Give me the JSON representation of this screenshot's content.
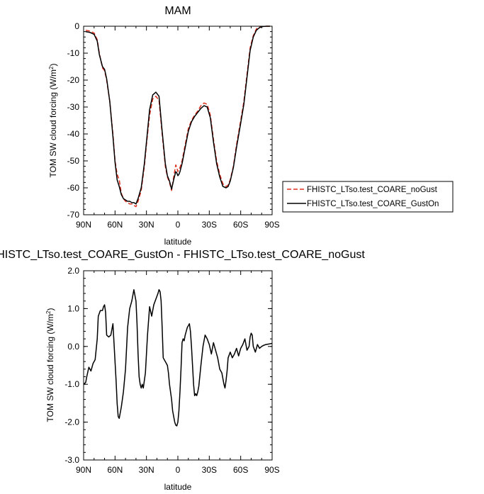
{
  "chart_data": [
    {
      "type": "line",
      "title": "MAM",
      "xlabel": "latitude",
      "ylabel_main": "TOM SW cloud forcing (W/m",
      "ylabel_sup": "2",
      "ylabel_end": ")",
      "xlim": [
        90,
        -90
      ],
      "ylim": [
        -70,
        0
      ],
      "x_ticks": [
        90,
        60,
        30,
        0,
        -30,
        -60,
        -90
      ],
      "x_tick_labels": [
        "90N",
        "60N",
        "30N",
        "0",
        "30S",
        "60S",
        "90S"
      ],
      "y_ticks": [
        0,
        -10,
        -20,
        -30,
        -40,
        -50,
        -60,
        -70
      ],
      "y_tick_labels": [
        "0",
        "-10",
        "-20",
        "-30",
        "-40",
        "-50",
        "-60",
        "-70"
      ],
      "legend_position": "right",
      "series": [
        {
          "name": "FHISTC_LTso.test_COARE_noGust",
          "color": "#e03020",
          "dash": true,
          "x": [
            88,
            84,
            80,
            77,
            75,
            72,
            70,
            68,
            65,
            62,
            60,
            58,
            56,
            54,
            52,
            50,
            48,
            46,
            44,
            42,
            40,
            38,
            35,
            32,
            30,
            27,
            24,
            21,
            18,
            15,
            12,
            10,
            8,
            6,
            4,
            2,
            1,
            0,
            -1,
            -2,
            -4,
            -6,
            -8,
            -10,
            -13,
            -16,
            -19,
            -22,
            -25,
            -28,
            -31,
            -34,
            -37,
            -40,
            -43,
            -46,
            -48,
            -50,
            -53,
            -56,
            -60,
            -63,
            -66,
            -69,
            -72,
            -75,
            -78,
            -81,
            -85,
            -88
          ],
          "y": [
            -1.5,
            -1.8,
            -2.5,
            -5,
            -10,
            -15.5,
            -16.5,
            -20,
            -28,
            -40,
            -50,
            -55,
            -57,
            -62,
            -64,
            -65,
            -65.5,
            -66,
            -66,
            -66.5,
            -67,
            -65,
            -61,
            -52,
            -44,
            -33,
            -27,
            -26,
            -27.5,
            -40,
            -52,
            -56,
            -58,
            -61,
            -56,
            -51.5,
            -52.5,
            -54,
            -53,
            -52.5,
            -50,
            -46,
            -42,
            -38,
            -35,
            -33,
            -31.5,
            -29.5,
            -28.5,
            -29,
            -33,
            -42,
            -50,
            -55,
            -58.5,
            -59.5,
            -59,
            -57,
            -52,
            -44,
            -35,
            -28,
            -18,
            -8,
            -3.5,
            -1,
            -0.3,
            -0.1,
            0,
            0
          ]
        },
        {
          "name": "FHISTC_LTso.test_COARE_GustOn",
          "color": "#000000",
          "dash": false,
          "x": [
            88,
            84,
            80,
            77,
            75,
            72,
            70,
            68,
            65,
            62,
            60,
            58,
            56,
            54,
            52,
            50,
            48,
            46,
            44,
            42,
            40,
            38,
            35,
            32,
            30,
            27,
            24,
            21,
            18,
            15,
            12,
            10,
            8,
            6,
            4,
            2,
            1,
            0,
            -1,
            -2,
            -4,
            -6,
            -8,
            -10,
            -13,
            -16,
            -19,
            -22,
            -25,
            -28,
            -31,
            -34,
            -37,
            -40,
            -43,
            -46,
            -48,
            -50,
            -53,
            -56,
            -60,
            -63,
            -66,
            -69,
            -72,
            -75,
            -78,
            -81,
            -85,
            -88
          ],
          "y": [
            -2,
            -2.3,
            -3,
            -5.5,
            -10.5,
            -15,
            -16,
            -19.5,
            -28,
            -41,
            -50.5,
            -57,
            -59.5,
            -62.5,
            -64,
            -64.5,
            -65,
            -65,
            -65.5,
            -65.5,
            -66,
            -64,
            -60,
            -51,
            -43,
            -31,
            -25.5,
            -24.5,
            -26,
            -39,
            -51,
            -55.5,
            -57.5,
            -60.5,
            -57,
            -54,
            -54.5,
            -55.5,
            -55,
            -54,
            -51,
            -47,
            -43,
            -39,
            -35.5,
            -33.5,
            -32,
            -30.5,
            -29.5,
            -30,
            -34,
            -43,
            -51,
            -56,
            -59.5,
            -60,
            -59.5,
            -57.5,
            -52.5,
            -45,
            -36,
            -29,
            -19,
            -9,
            -4,
            -1.5,
            -0.5,
            -0.1,
            0,
            0
          ]
        }
      ]
    },
    {
      "type": "line",
      "title": "HISTC_LTso.test_COARE_GustOn - FHISTC_LTso.test_COARE_noGust",
      "xlabel": "latitude",
      "ylabel_main": "TOM SW cloud forcing (W/m",
      "ylabel_sup": "2",
      "ylabel_end": ")",
      "xlim": [
        90,
        -90
      ],
      "ylim": [
        -3.0,
        2.0
      ],
      "x_ticks": [
        90,
        60,
        30,
        0,
        -30,
        -60,
        -90
      ],
      "x_tick_labels": [
        "90N",
        "60N",
        "30N",
        "0",
        "30S",
        "60S",
        "90S"
      ],
      "y_ticks": [
        2.0,
        1.0,
        0.0,
        -1.0,
        -2.0,
        -3.0
      ],
      "y_tick_labels": [
        "2.0",
        "1.0",
        "0.0",
        "-1.0",
        "-2.0",
        "-3.0"
      ],
      "series": [
        {
          "name": "",
          "color": "#000000",
          "dash": false,
          "x": [
            90,
            88,
            87,
            85,
            83,
            81,
            79,
            77,
            76,
            74,
            72,
            71,
            70,
            69,
            68,
            66,
            64,
            63,
            62,
            61,
            60,
            59,
            58,
            57,
            56,
            54,
            52,
            50,
            48,
            46,
            44,
            42,
            40,
            39,
            38,
            37,
            36,
            35,
            34,
            33,
            31,
            29,
            27,
            25,
            23,
            21,
            19,
            18,
            17,
            16,
            15,
            14,
            12,
            10,
            9,
            8,
            7,
            6,
            5,
            4,
            3,
            2,
            1,
            0,
            -1,
            -2,
            -3,
            -4,
            -5,
            -6,
            -7,
            -8,
            -9,
            -10,
            -11,
            -12,
            -13,
            -14,
            -15,
            -16,
            -17,
            -18,
            -19,
            -20,
            -22,
            -24,
            -26,
            -28,
            -30,
            -32,
            -34,
            -36,
            -38,
            -40,
            -42,
            -44,
            -45,
            -46,
            -47,
            -48,
            -50,
            -52,
            -54,
            -56,
            -58,
            -60,
            -62,
            -64,
            -66,
            -68,
            -69,
            -70,
            -71,
            -72,
            -74,
            -76,
            -78,
            -80,
            -82,
            -84,
            -86,
            -88,
            -90
          ],
          "y": [
            -1.0,
            -0.95,
            -0.8,
            -0.55,
            -0.65,
            -0.45,
            -0.35,
            0.2,
            0.8,
            0.95,
            0.95,
            1.05,
            1.1,
            0.9,
            0.3,
            0.25,
            0.3,
            0.45,
            0.6,
            0.1,
            -0.4,
            -0.9,
            -1.5,
            -1.85,
            -1.9,
            -1.6,
            -1.2,
            -0.6,
            0.5,
            1.0,
            1.2,
            1.5,
            1.2,
            0.6,
            -0.2,
            -0.8,
            -1.0,
            -1.1,
            -1.0,
            -1.1,
            -0.7,
            0.3,
            1.05,
            0.8,
            1.1,
            1.25,
            1.4,
            1.5,
            1.45,
            1.2,
            0.5,
            -0.3,
            -0.4,
            -0.5,
            -0.7,
            -1.0,
            -1.2,
            -1.4,
            -1.7,
            -1.85,
            -2.0,
            -2.08,
            -2.1,
            -2.0,
            -1.7,
            -1.2,
            -0.6,
            0.1,
            0.2,
            0.15,
            0.3,
            0.4,
            0.5,
            0.55,
            0.6,
            0.4,
            0.0,
            -0.5,
            -1.0,
            -1.3,
            -1.25,
            -1.3,
            -1.2,
            -1.05,
            -0.5,
            0.0,
            0.3,
            0.2,
            0.05,
            -0.2,
            0.1,
            -0.1,
            -0.3,
            -0.6,
            -0.7,
            -1.0,
            -1.1,
            -0.9,
            -0.65,
            -0.3,
            -0.15,
            -0.3,
            -0.2,
            -0.05,
            -0.25,
            -0.05,
            0.05,
            0.2,
            -0.1,
            0.0,
            0.25,
            0.35,
            0.3,
            0.0,
            -0.15,
            0.05,
            -0.05,
            0.0,
            0.03,
            0.05,
            0.06,
            0.07,
            0.08
          ]
        }
      ]
    }
  ]
}
